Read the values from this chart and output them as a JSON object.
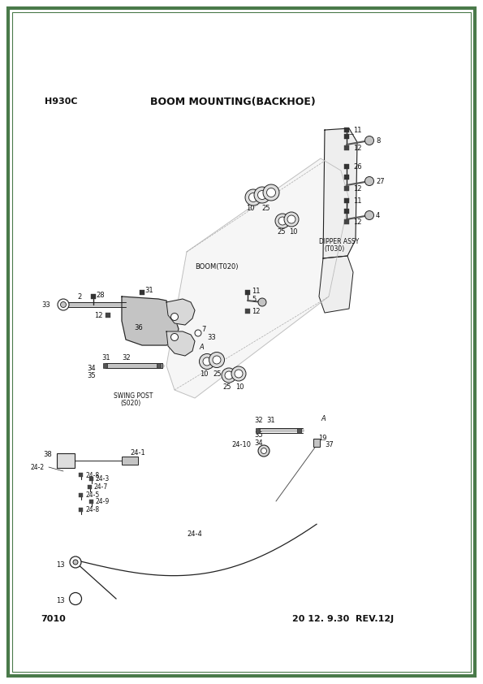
{
  "title": "BOOM MOUNTING(BACKHOE)",
  "model": "H930C",
  "page_num": "7010",
  "revision": "20 12. 9.30  REV.12J",
  "bg_color": "#ffffff",
  "border_color": "#4a7a4a",
  "line_color": "#222222",
  "text_color": "#111111",
  "fig_width": 5.95,
  "fig_height": 8.42,
  "dpi": 100,
  "right_bolts": [
    [
      430,
      165,
      "11"
    ],
    [
      430,
      180,
      "8"
    ],
    [
      430,
      193,
      "12"
    ],
    [
      430,
      212,
      "26"
    ],
    [
      430,
      226,
      "27"
    ],
    [
      430,
      240,
      "12"
    ],
    [
      430,
      255,
      "11"
    ],
    [
      430,
      269,
      "4"
    ],
    [
      430,
      283,
      "12"
    ]
  ]
}
